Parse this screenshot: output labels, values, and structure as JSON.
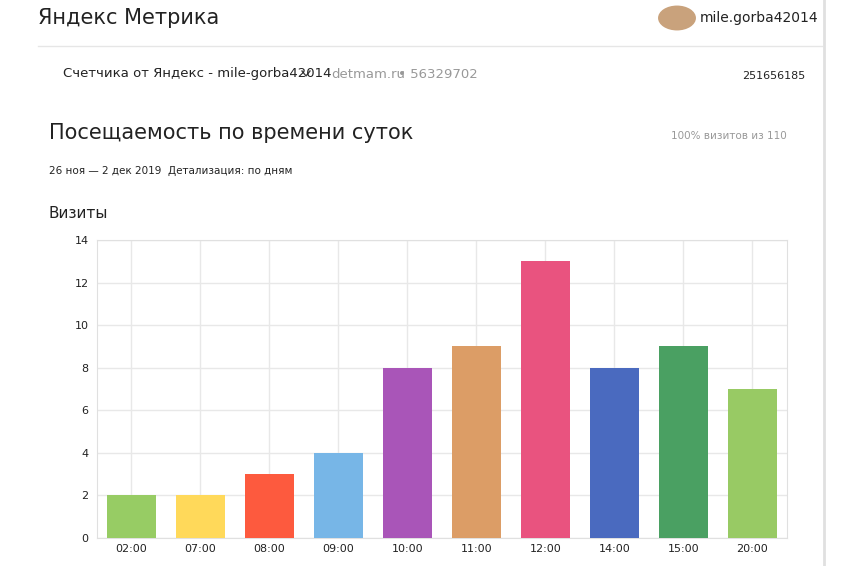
{
  "page": {
    "logo": "Яндекс Метрика",
    "user": "mile.gorba42014",
    "counter": "Счетчика от Яндекс - mile-gorba42014",
    "site": "detmam.ru",
    "counter_id": "• 56329702",
    "account_id": "251656185",
    "report_title": "Посещаемость по времени суток",
    "share": "100% визитов из 110",
    "period": "26 ноя — 2 дек 2019",
    "detail": "Детализация: по дням"
  },
  "chart_data": {
    "type": "bar",
    "title": "Визиты",
    "categories": [
      "02:00",
      "07:00",
      "08:00",
      "09:00",
      "10:00",
      "11:00",
      "12:00",
      "14:00",
      "15:00",
      "20:00"
    ],
    "values": [
      2,
      2,
      3,
      4,
      8,
      9,
      13,
      8,
      9,
      7
    ],
    "colors": [
      "#97cc64",
      "#ffd95a",
      "#fd5a3e",
      "#77b6e7",
      "#a955b8",
      "#dc9d66",
      "#e9537f",
      "#4a6abf",
      "#4aa062",
      "#98ca64"
    ],
    "ylim": [
      0,
      14
    ],
    "yticks": [
      0,
      2,
      4,
      6,
      8,
      10,
      12,
      14
    ],
    "grid": true
  }
}
